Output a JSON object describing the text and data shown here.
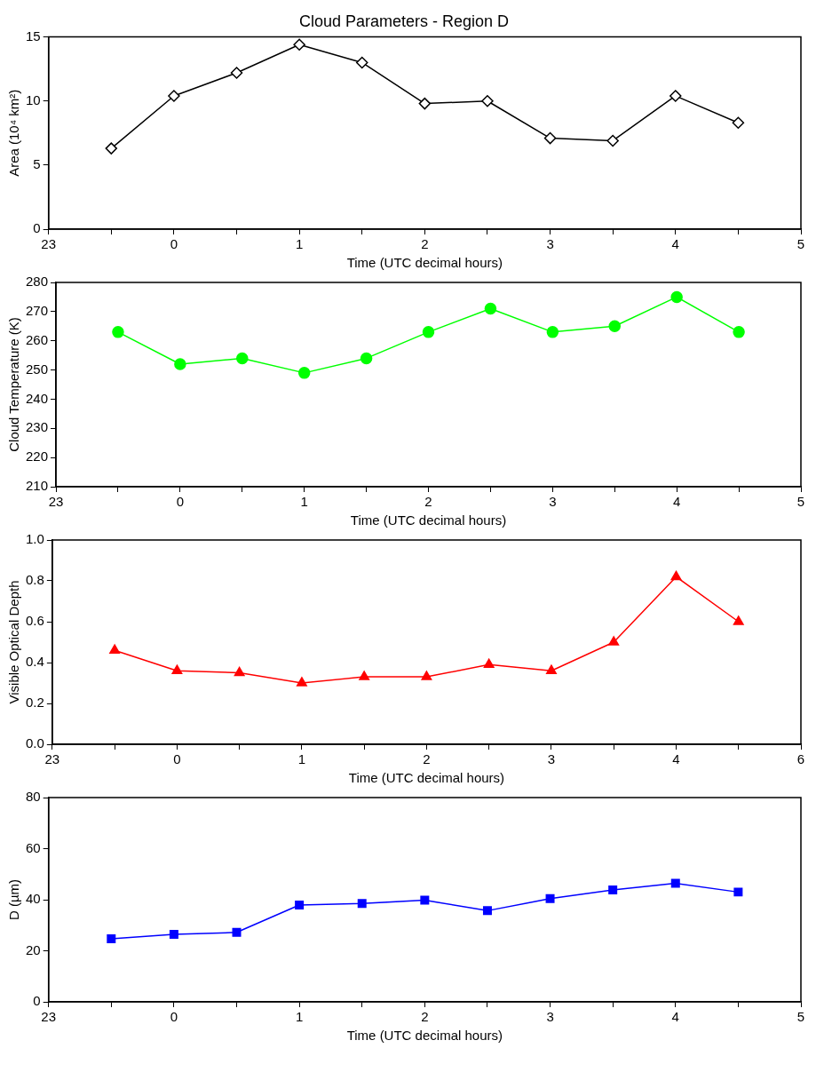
{
  "chart_data": [
    {
      "type": "line",
      "title": "Cloud Parameters - Region D",
      "xlabel": "Time (UTC decimal hours)",
      "ylabel": "Area (10⁴ km²)",
      "categories": [
        "23",
        null,
        "0",
        null,
        "1",
        null,
        "2",
        null,
        "3",
        null,
        "4",
        null,
        "5"
      ],
      "ylim": [
        0,
        15
      ],
      "yticks": [
        0,
        5,
        10,
        15
      ],
      "grid": false,
      "legend": false,
      "marker": "diamond",
      "line_style": "solid",
      "series": [
        {
          "color": "#000000",
          "values": [
            null,
            6.3,
            10.4,
            12.2,
            14.4,
            13.0,
            9.8,
            10.0,
            7.1,
            6.9,
            10.4,
            8.3,
            null
          ]
        }
      ]
    },
    {
      "type": "line",
      "xlabel": "Time (UTC decimal hours)",
      "ylabel": "Cloud Temperature (K)",
      "categories": [
        "23",
        null,
        "0",
        null,
        "1",
        null,
        "2",
        null,
        "3",
        null,
        "4",
        null,
        "5"
      ],
      "ylim": [
        210,
        280
      ],
      "yticks": [
        210,
        220,
        230,
        240,
        250,
        260,
        270,
        280
      ],
      "grid": false,
      "legend": false,
      "marker": "circle",
      "line_style": "solid",
      "series": [
        {
          "color": "#00ff00",
          "values": [
            null,
            263,
            252,
            254,
            249,
            254,
            263,
            271,
            263,
            265,
            275,
            263,
            null
          ]
        }
      ]
    },
    {
      "type": "line",
      "xlabel": "Time (UTC decimal hours)",
      "ylabel": "Visible Optical Depth",
      "categories": [
        "23",
        null,
        "0",
        null,
        "1",
        null,
        "2",
        null,
        "3",
        null,
        "4",
        null,
        "6"
      ],
      "ylim": [
        0,
        1
      ],
      "yticks": [
        {
          "value": 0,
          "label": "0.0"
        },
        0.2,
        0.4,
        0.6,
        0.8,
        {
          "value": 1,
          "label": "1.0"
        }
      ],
      "grid": false,
      "legend": false,
      "marker": "triangle",
      "line_style": "solid",
      "series": [
        {
          "color": "#ff0000",
          "values": [
            null,
            0.46,
            0.36,
            0.35,
            0.3,
            0.33,
            0.33,
            0.39,
            0.36,
            0.5,
            0.82,
            0.6,
            null
          ]
        }
      ]
    },
    {
      "type": "line",
      "xlabel": "Time (UTC decimal hours)",
      "ylabel": "D (µm)",
      "categories": [
        "23",
        null,
        "0",
        null,
        "1",
        null,
        "2",
        null,
        "3",
        null,
        "4",
        null,
        "5"
      ],
      "ylim": [
        0,
        80
      ],
      "yticks": [
        0,
        20,
        40,
        60,
        80
      ],
      "grid": false,
      "legend": false,
      "marker": "square",
      "line_style": "solid",
      "series": [
        {
          "color": "#0000ff",
          "values": [
            null,
            24.7,
            26.4,
            27.2,
            37.9,
            38.5,
            39.8,
            35.7,
            40.4,
            43.8,
            46.4,
            43.0,
            null
          ]
        }
      ]
    }
  ]
}
